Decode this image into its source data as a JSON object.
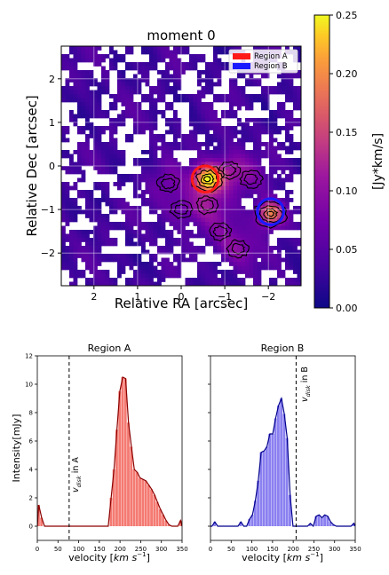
{
  "colors": {
    "region_a": "#ff1a1a",
    "region_b": "#1a1aff",
    "bar_a": "#f47a72",
    "bar_b": "#8a80f0",
    "line_a": "#8b0000",
    "line_b": "#00008b",
    "map_low": "#0d0887",
    "map_mid": "#cc4778",
    "map_high": "#f0f921"
  },
  "chart_data": [
    {
      "type": "heatmap",
      "title": "moment 0",
      "xlabel": "Relative RA [arcsec]",
      "ylabel": "Relative Dec [arcsec]",
      "xlim": [
        2.75,
        -2.75
      ],
      "ylim": [
        -2.75,
        2.75
      ],
      "xticks": [
        2,
        1,
        0,
        -1,
        -2
      ],
      "yticks": [
        2,
        1,
        0,
        -1,
        -2
      ],
      "xtick_labels": [
        "2",
        "1",
        "0",
        "−1",
        "−2"
      ],
      "ytick_labels": [
        "2",
        "1",
        "0",
        "−1",
        "−2"
      ],
      "colorbar": {
        "label": "[Jy*km/s]",
        "range": [
          0.0,
          0.25
        ],
        "ticks": [
          0.0,
          0.05,
          0.1,
          0.15,
          0.2,
          0.25
        ],
        "tick_labels": [
          "0.00",
          "0.05",
          "0.10",
          "0.15",
          "0.20",
          "0.25"
        ],
        "colormap": "plasma"
      },
      "legend": {
        "position": "top-right",
        "entries": [
          {
            "name": "Region A",
            "color": "#ff1a1a"
          },
          {
            "name": "Region B",
            "color": "#1a1aff"
          }
        ]
      },
      "regions": [
        {
          "name": "Region A",
          "x": -0.55,
          "y": -0.3,
          "r": 0.3,
          "color": "#ff1a1a"
        },
        {
          "name": "Region B",
          "x": -2.05,
          "y": -1.05,
          "r": 0.3,
          "color": "#1a1aff"
        }
      ],
      "peaks": [
        {
          "x": -0.6,
          "y": -0.3,
          "value": 0.24
        },
        {
          "x": -2.05,
          "y": -1.1,
          "value": 0.2
        },
        {
          "x": -1.1,
          "y": -0.1,
          "value": 0.11
        },
        {
          "x": -0.6,
          "y": -0.9,
          "value": 0.09
        },
        {
          "x": -1.3,
          "y": -1.9,
          "value": 0.09
        },
        {
          "x": 0.3,
          "y": -0.4,
          "value": 0.07
        },
        {
          "x": 0.0,
          "y": -1.0,
          "value": 0.07
        },
        {
          "x": -0.9,
          "y": -1.5,
          "value": 0.06
        },
        {
          "x": -1.6,
          "y": -0.3,
          "value": 0.06
        }
      ]
    },
    {
      "type": "bar",
      "title": "Region A",
      "xlabel": "velocity [km s⁻¹]",
      "ylabel": "Intensity[mJy]",
      "xlim": [
        0,
        350
      ],
      "ylim": [
        -1,
        12
      ],
      "xticks": [
        0,
        50,
        100,
        150,
        200,
        250,
        300,
        350
      ],
      "yticks": [
        0,
        2,
        4,
        6,
        8,
        10,
        12
      ],
      "bin_width": 7,
      "x": [
        0,
        7,
        14,
        21,
        28,
        35,
        42,
        49,
        56,
        63,
        70,
        77,
        84,
        91,
        98,
        105,
        112,
        119,
        126,
        133,
        140,
        147,
        154,
        161,
        168,
        175,
        182,
        189,
        196,
        203,
        210,
        217,
        224,
        231,
        238,
        245,
        252,
        259,
        266,
        273,
        280,
        287,
        294,
        301,
        308,
        315,
        322,
        329,
        336,
        343
      ],
      "values": [
        1.5,
        0.6,
        0,
        0,
        0,
        0,
        0,
        0,
        0,
        0,
        0,
        0,
        0,
        0,
        0,
        0,
        0,
        0,
        0,
        0,
        0,
        0,
        0,
        0,
        0,
        2.0,
        4.0,
        6.8,
        9.5,
        10.5,
        10.4,
        7.3,
        5.6,
        4.0,
        3.8,
        3.4,
        3.3,
        3.2,
        2.9,
        2.6,
        2.2,
        1.7,
        1.2,
        0.8,
        0.4,
        0.1,
        0,
        0,
        0,
        0.4
      ],
      "vline": {
        "x": 77,
        "label": "v_disk in A"
      }
    },
    {
      "type": "bar",
      "title": "Region B",
      "xlabel": "velocity [km s⁻¹]",
      "ylabel": "",
      "xlim": [
        0,
        350
      ],
      "ylim": [
        -1,
        12
      ],
      "xticks": [
        0,
        50,
        100,
        150,
        200,
        250,
        300,
        350
      ],
      "yticks": [
        0,
        2,
        4,
        6,
        8,
        10,
        12
      ],
      "bin_width": 7,
      "x": [
        0,
        7,
        14,
        21,
        28,
        35,
        42,
        49,
        56,
        63,
        70,
        77,
        84,
        91,
        98,
        105,
        112,
        119,
        126,
        133,
        140,
        147,
        154,
        161,
        168,
        175,
        182,
        189,
        196,
        203,
        210,
        217,
        224,
        231,
        238,
        245,
        252,
        259,
        266,
        273,
        280,
        287,
        294,
        301,
        308,
        315,
        322,
        329,
        336,
        343
      ],
      "values": [
        0,
        0.3,
        0,
        0,
        0,
        0,
        0,
        0,
        0,
        0,
        0.3,
        0,
        0,
        0.5,
        0.8,
        1.8,
        3.2,
        5.2,
        5.3,
        5.6,
        6.5,
        6.5,
        7.6,
        8.5,
        9.0,
        7.9,
        6.2,
        2.2,
        0,
        0,
        0,
        0,
        0,
        0,
        0.2,
        0,
        0.7,
        0.8,
        0.6,
        0.8,
        0.7,
        0.3,
        0.1,
        0,
        0,
        0,
        0,
        0,
        0,
        0.2
      ],
      "vline": {
        "x": 207,
        "label": "v_disk in B"
      }
    }
  ],
  "labels": {
    "map_title": "moment 0",
    "map_xlabel": "Relative RA [arcsec]",
    "map_ylabel": "Relative Dec [arcsec]",
    "cbar_label": "[Jy*km/s]",
    "legend_a": "Region A",
    "legend_b": "Region B",
    "spec_a_title": "Region A",
    "spec_b_title": "Region B",
    "spec_ylabel": "Intensity[mJy]",
    "xlabel_main": "velocity [",
    "xlabel_km": "km",
    "xlabel_s": "s",
    "xlabel_exp": "−1",
    "xlabel_end": "]",
    "vdisk_v": "v",
    "vdisk_sub": "disk",
    "vdisk_in_a": " in A",
    "vdisk_in_b": " in B"
  }
}
